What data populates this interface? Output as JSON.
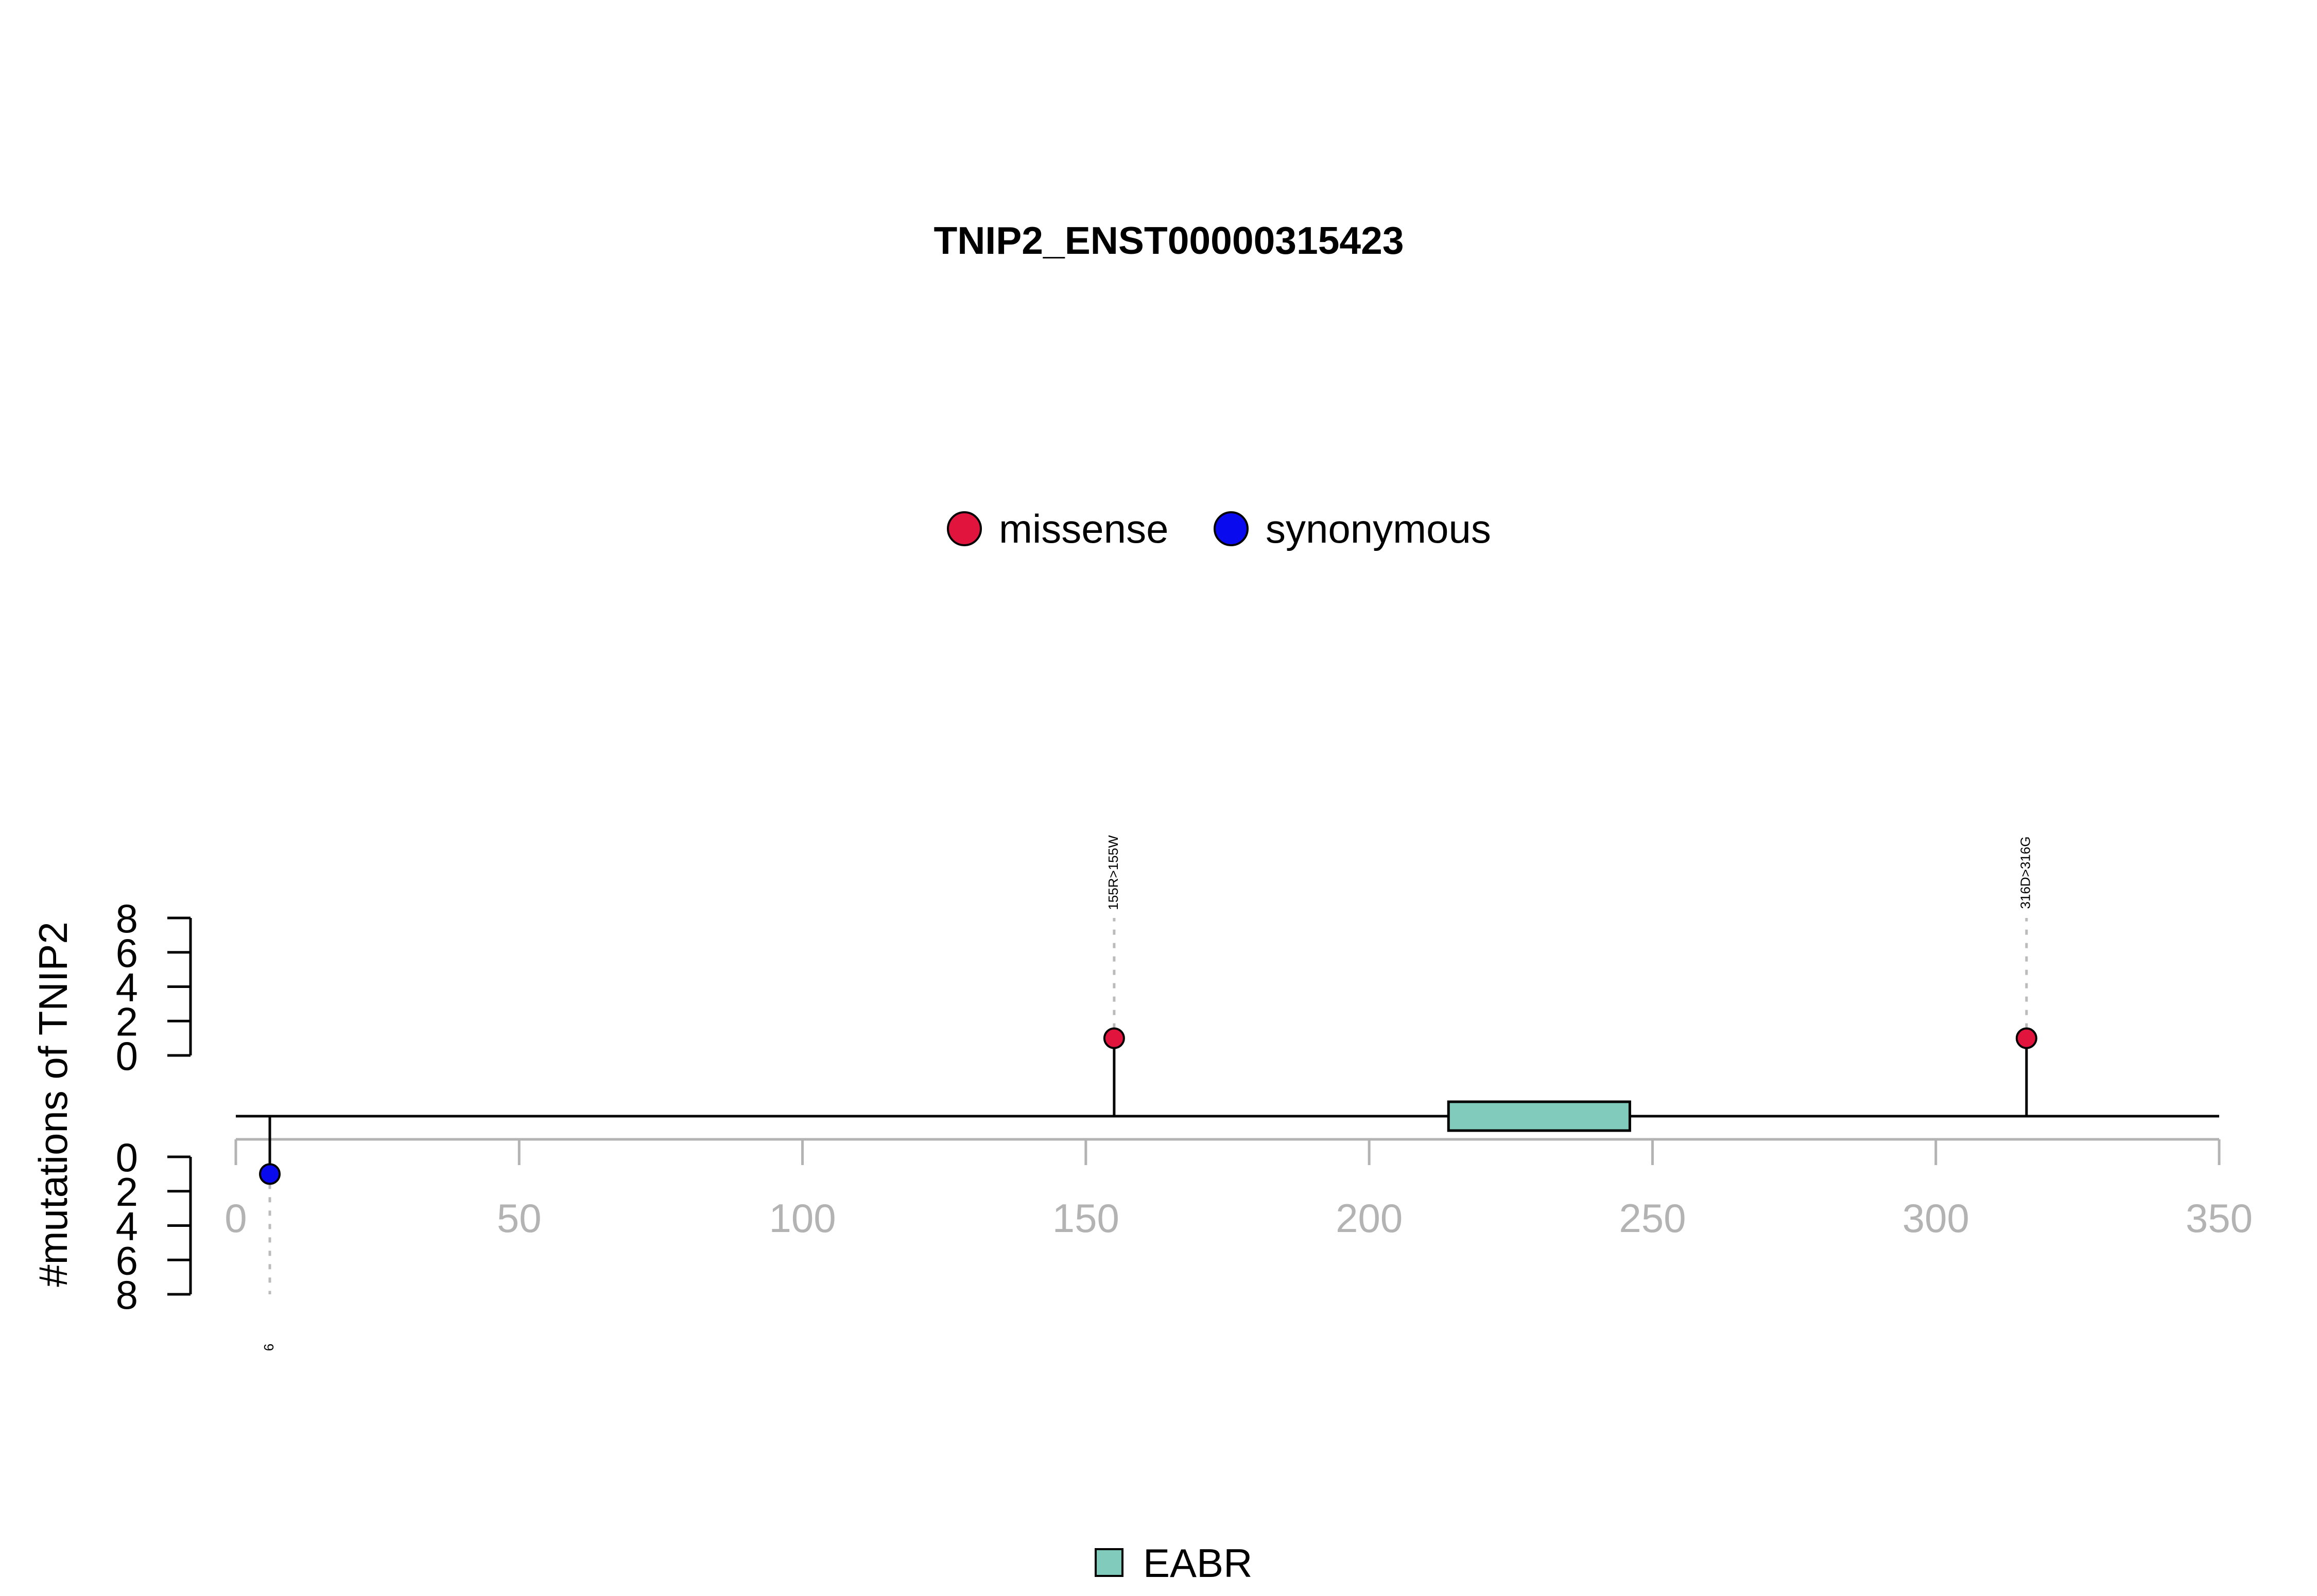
{
  "chart_data": {
    "type": "lollipop",
    "title": "TNIP2_ENST00000315423",
    "ylabel": "#mutations of TNIP2",
    "xlim": [
      0,
      350
    ],
    "x_ticks": [
      0,
      50,
      100,
      150,
      200,
      250,
      300,
      350
    ],
    "y_ticks": [
      0,
      2,
      4,
      6,
      8
    ],
    "ylim": [
      0,
      8
    ],
    "legend_top": [
      {
        "label": "missense",
        "color": "#e0143c"
      },
      {
        "label": "synonymous",
        "color": "#0a0aee"
      }
    ],
    "mutations": [
      {
        "position": 6,
        "count": 1,
        "type": "synonymous",
        "side": "bottom",
        "label": "6",
        "color": "#0a0aee"
      },
      {
        "position": 155,
        "count": 1,
        "type": "missense",
        "side": "top",
        "label": "155R>155W",
        "color": "#e0143c"
      },
      {
        "position": 316,
        "count": 1,
        "type": "missense",
        "side": "top",
        "label": "316D>316G",
        "color": "#e0143c"
      }
    ],
    "domains": [
      {
        "name": "EABR",
        "start": 214,
        "end": 246,
        "color": "#80cbbb"
      }
    ],
    "legend_bottom": [
      {
        "label": "EABR",
        "color": "#80cbbb"
      }
    ]
  }
}
